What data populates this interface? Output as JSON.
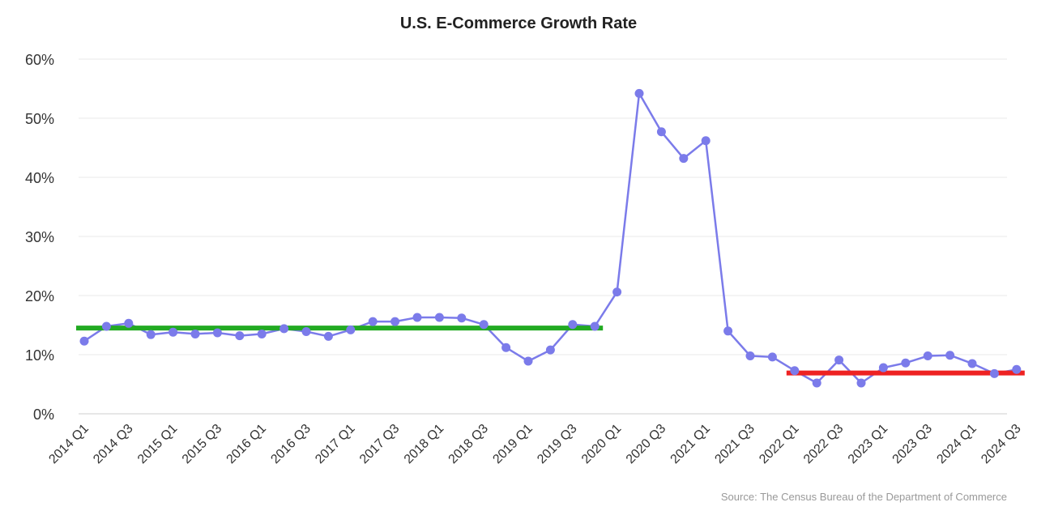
{
  "chart_data": {
    "type": "line",
    "title": "U.S. E-Commerce Growth Rate",
    "source": "Source: The Census Bureau of the Department of Commerce",
    "xlabel": "",
    "ylabel": "",
    "ylim": [
      0,
      60
    ],
    "yticks": [
      "0%",
      "10%",
      "20%",
      "30%",
      "40%",
      "50%",
      "60%"
    ],
    "grid": true,
    "categories": [
      "2014 Q1",
      "2014 Q2",
      "2014 Q3",
      "2014 Q4",
      "2015 Q1",
      "2015 Q2",
      "2015 Q3",
      "2015 Q4",
      "2016 Q1",
      "2016 Q2",
      "2016 Q3",
      "2016 Q4",
      "2017 Q1",
      "2017 Q2",
      "2017 Q3",
      "2017 Q4",
      "2018 Q1",
      "2018 Q2",
      "2018 Q3",
      "2018 Q4",
      "2019 Q1",
      "2019 Q2",
      "2019 Q3",
      "2019 Q4",
      "2020 Q1",
      "2020 Q2",
      "2020 Q3",
      "2020 Q4",
      "2021 Q1",
      "2021 Q2",
      "2021 Q3",
      "2021 Q4",
      "2022 Q1",
      "2022 Q2",
      "2022 Q3",
      "2022 Q4",
      "2023 Q1",
      "2023 Q2",
      "2023 Q3",
      "2023 Q4",
      "2024 Q1",
      "2024 Q2",
      "2024 Q3"
    ],
    "tick_labels": [
      "2014 Q1",
      "2014 Q3",
      "2015 Q1",
      "2015 Q3",
      "2016 Q1",
      "2016 Q3",
      "2017 Q1",
      "2017 Q3",
      "2018 Q1",
      "2018 Q3",
      "2019 Q1",
      "2019 Q3",
      "2020 Q1",
      "2020 Q3",
      "2021 Q1",
      "2021 Q3",
      "2022 Q1",
      "2022 Q3",
      "2023 Q1",
      "2023 Q3",
      "2024 Q1",
      "2024 Q3"
    ],
    "series": [
      {
        "color": "#7b7bea",
        "values": [
          12.3,
          14.8,
          15.3,
          13.4,
          13.8,
          13.5,
          13.7,
          13.2,
          13.5,
          14.4,
          13.9,
          13.1,
          14.2,
          15.6,
          15.6,
          16.3,
          16.3,
          16.2,
          15.1,
          11.2,
          8.9,
          10.8,
          15.1,
          14.8,
          20.6,
          54.2,
          47.7,
          43.2,
          46.2,
          14.0,
          9.8,
          9.6,
          7.3,
          5.2,
          9.1,
          5.2,
          7.8,
          8.6,
          9.8,
          9.9,
          8.5,
          6.8,
          7.5
        ]
      }
    ],
    "reference_lines": [
      {
        "color": "#22aa22",
        "value": 14.5,
        "x_start": "2014 Q1",
        "x_end": "2019 Q4"
      },
      {
        "color": "#ee2222",
        "value": 6.9,
        "x_start": "2022 Q1",
        "x_end": "2024 Q3"
      }
    ]
  }
}
